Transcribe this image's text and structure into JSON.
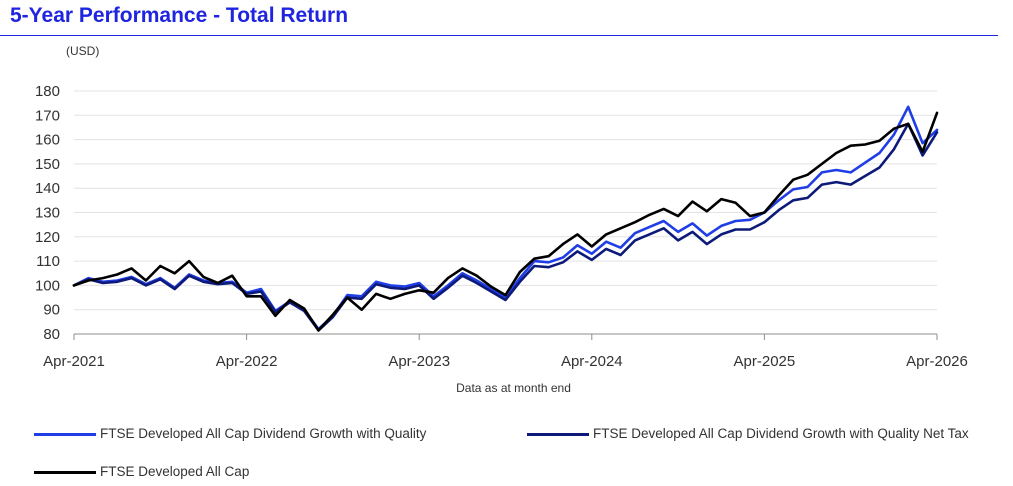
{
  "title": "5-Year Performance - Total Return",
  "chart_data": {
    "type": "line",
    "unit_label": "(USD)",
    "xlabel": "Data as at month end",
    "ylabel": "",
    "ylim": [
      80,
      180
    ],
    "yticks": [
      80,
      90,
      100,
      110,
      120,
      130,
      140,
      150,
      160,
      170,
      180
    ],
    "x_tick_labels": [
      "Apr-2021",
      "Apr-2022",
      "Apr-2023",
      "Apr-2024",
      "Apr-2025",
      "Apr-2026"
    ],
    "x_months": 60,
    "grid": "horizontal",
    "legend_placement": "bottom",
    "series": [
      {
        "name": "FTSE Developed All Cap Dividend Growth with Quality",
        "color": "#1f3ee6",
        "values": [
          100,
          103,
          101.5,
          102,
          103.5,
          100.5,
          103,
          99,
          104.5,
          102,
          101,
          101.5,
          97,
          98.5,
          89.5,
          93.5,
          90,
          82,
          87.5,
          96,
          95.5,
          101.5,
          100,
          99.5,
          101,
          95.5,
          100,
          105,
          102,
          98.5,
          95,
          103,
          110,
          109.5,
          111.5,
          116.5,
          113,
          118,
          115.5,
          121.5,
          124,
          126.5,
          122,
          125.5,
          120.5,
          124.5,
          126.5,
          127,
          130,
          135,
          139.5,
          140.5,
          146.5,
          147.5,
          146.5,
          150.5,
          154.5,
          162,
          173.5,
          158.5,
          164
        ]
      },
      {
        "name": "FTSE Developed All Cap Dividend Growth with Quality Net Tax",
        "color": "#0d1a7a",
        "values": [
          100,
          102.5,
          101,
          101.5,
          103,
          100,
          102.5,
          98.5,
          104,
          101.5,
          100.5,
          101,
          96.5,
          97.5,
          89,
          93,
          89.5,
          81.5,
          87,
          95,
          94.5,
          100.5,
          99,
          98.5,
          100,
          94.5,
          99,
          104,
          101,
          97.5,
          94,
          101.5,
          108,
          107.5,
          109.5,
          114,
          110.5,
          115,
          112.5,
          118.5,
          121,
          123.5,
          118.5,
          122,
          117,
          121,
          123,
          123,
          126,
          131,
          135,
          136,
          141.5,
          142.5,
          141.5,
          145,
          148.5,
          156,
          166.5,
          153.5,
          163
        ]
      },
      {
        "name": "FTSE Developed All Cap",
        "color": "#000000",
        "values": [
          100,
          102,
          103,
          104.5,
          107,
          102,
          108,
          105,
          110,
          103.5,
          101,
          104,
          95.5,
          95.5,
          87.5,
          94,
          90.5,
          81.5,
          88,
          95,
          90,
          96.5,
          94.5,
          96.5,
          98,
          97,
          103,
          107,
          104,
          99.5,
          96,
          105.5,
          111,
          112,
          117,
          121,
          116,
          121,
          123.5,
          126,
          129,
          131.5,
          128.5,
          134.5,
          130.5,
          135.5,
          134,
          128.5,
          130,
          137,
          143.5,
          145.5,
          150,
          154.5,
          157.5,
          158,
          159.5,
          164.5,
          166.5,
          155,
          171
        ]
      }
    ]
  }
}
